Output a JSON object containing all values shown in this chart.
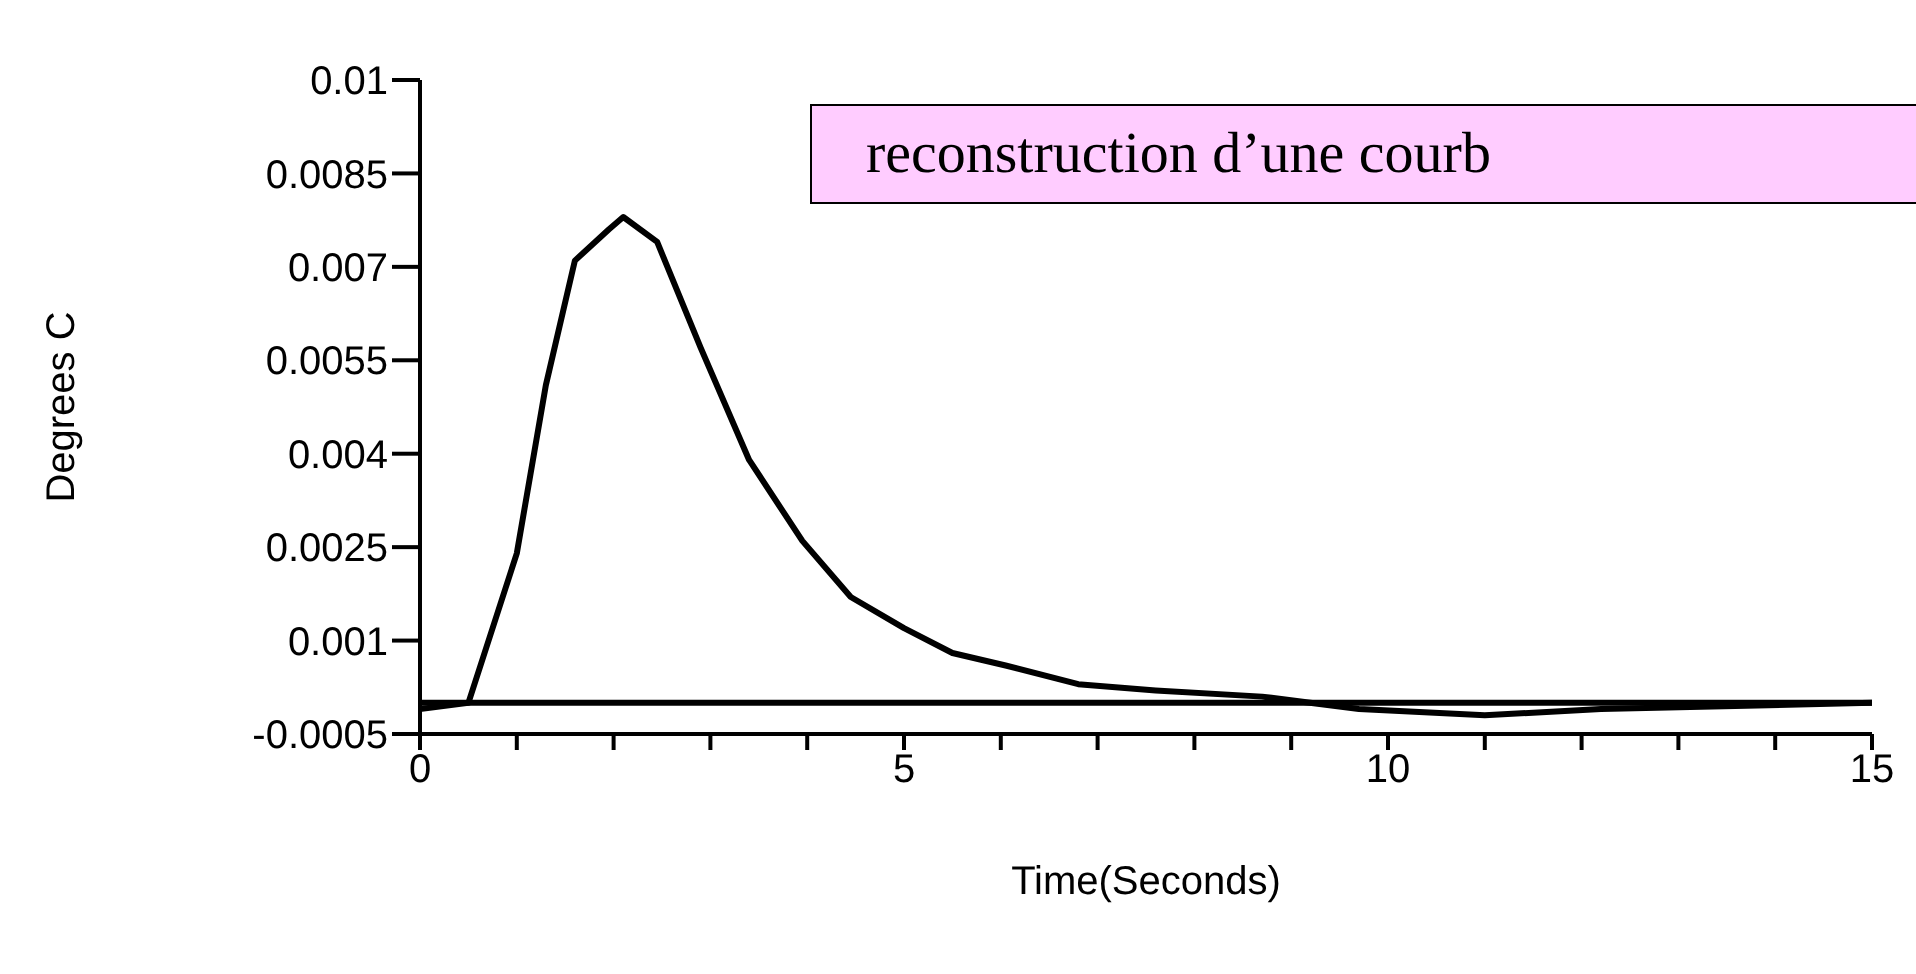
{
  "chart_data": {
    "type": "line",
    "xlabel": "Time(Seconds)",
    "ylabel": "Degrees C",
    "annotations": [
      "reconstruction d’une courb"
    ],
    "x": [
      0,
      0.5,
      1.0,
      1.3,
      1.6,
      1.95,
      2.1,
      2.45,
      2.9,
      3.4,
      3.95,
      4.45,
      5,
      5.5,
      6.05,
      6.8,
      7.6,
      8.7,
      9.7,
      11,
      12.2,
      15
    ],
    "series": [
      {
        "color": "#000000",
        "values": [
          -0.0001,
          0,
          0.0024,
          0.0051,
          0.0071,
          0.0076,
          0.0078,
          0.0074,
          0.0057,
          0.0039,
          0.0026,
          0.0017,
          0.0012,
          0.0008,
          0.0006,
          0.0003,
          0.0002,
          0.0001,
          -0.0001,
          -0.0002,
          -0.0001,
          0
        ]
      }
    ],
    "xlim": [
      0,
      15
    ],
    "xticks": [
      0,
      {
        "value": 1,
        "label": null
      },
      {
        "value": 2,
        "label": null
      },
      {
        "value": 3,
        "label": null
      },
      {
        "value": 4,
        "label": null
      },
      5,
      {
        "value": 6,
        "label": null
      },
      {
        "value": 7,
        "label": null
      },
      {
        "value": 8,
        "label": null
      },
      {
        "value": 9,
        "label": null
      },
      10,
      {
        "value": 11,
        "label": null
      },
      {
        "value": 12,
        "label": null
      },
      {
        "value": 13,
        "label": null
      },
      {
        "value": 14,
        "label": null
      },
      15
    ],
    "ylim": [
      -0.0005,
      0.01
    ],
    "yticks": [
      -0.0005,
      0.001,
      0.0025,
      0.004,
      0.0055,
      0.007,
      0.0085,
      0.01
    ],
    "ref_lines": [
      {
        "axis": "y",
        "value": 0,
        "color": "#000000"
      }
    ],
    "grid": false,
    "legend": false,
    "marker": "none",
    "line_style": "solid"
  }
}
